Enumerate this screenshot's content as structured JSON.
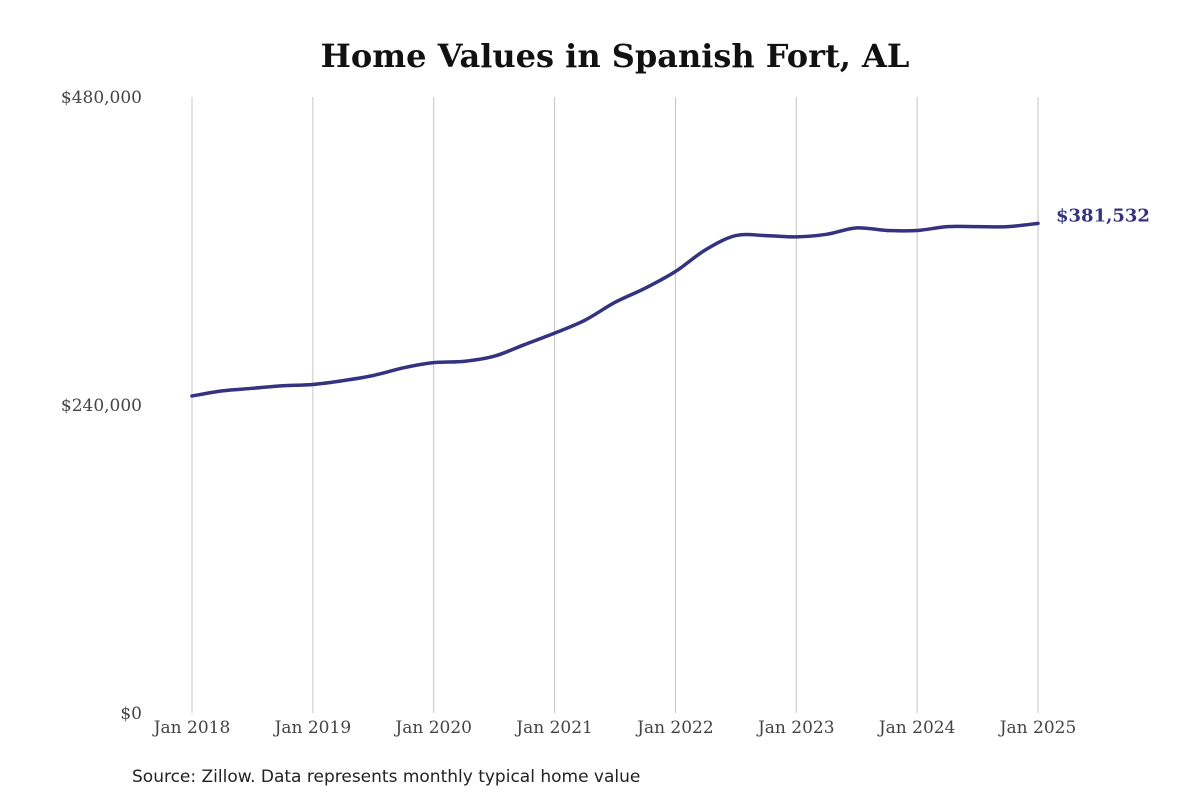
{
  "chart_data": {
    "type": "line",
    "title": "Home Values in Spanish Fort, AL",
    "source": "Source: Zillow. Data represents monthly typical home value",
    "ylim": [
      0,
      480000
    ],
    "y_ticks": [
      0,
      240000,
      480000
    ],
    "y_tick_labels": [
      "$0",
      "$240,000",
      "$480,000"
    ],
    "x_tick_labels": [
      "Jan 2018",
      "Jan 2019",
      "Jan 2020",
      "Jan 2021",
      "Jan 2022",
      "Jan 2023",
      "Jan 2024",
      "Jan 2025"
    ],
    "grid": "vertical",
    "line_color": "#35327f",
    "end_label": "$381,532",
    "series": [
      {
        "x": [
          "2018-01",
          "2018-04",
          "2018-07",
          "2018-10",
          "2019-01",
          "2019-04",
          "2019-07",
          "2019-10",
          "2020-01",
          "2020-04",
          "2020-07",
          "2020-10",
          "2021-01",
          "2021-04",
          "2021-07",
          "2021-10",
          "2022-01",
          "2022-04",
          "2022-07",
          "2022-10",
          "2023-01",
          "2023-04",
          "2023-07",
          "2023-10",
          "2024-01",
          "2024-04",
          "2024-07",
          "2024-10",
          "2025-01"
        ],
        "values": [
          247000,
          251000,
          253000,
          255000,
          256000,
          259000,
          263000,
          269000,
          273000,
          274000,
          278000,
          287000,
          296000,
          306000,
          320000,
          331000,
          344000,
          361000,
          372000,
          372000,
          371000,
          373000,
          378000,
          376000,
          376000,
          379000,
          379000,
          379000,
          381532
        ]
      }
    ]
  }
}
